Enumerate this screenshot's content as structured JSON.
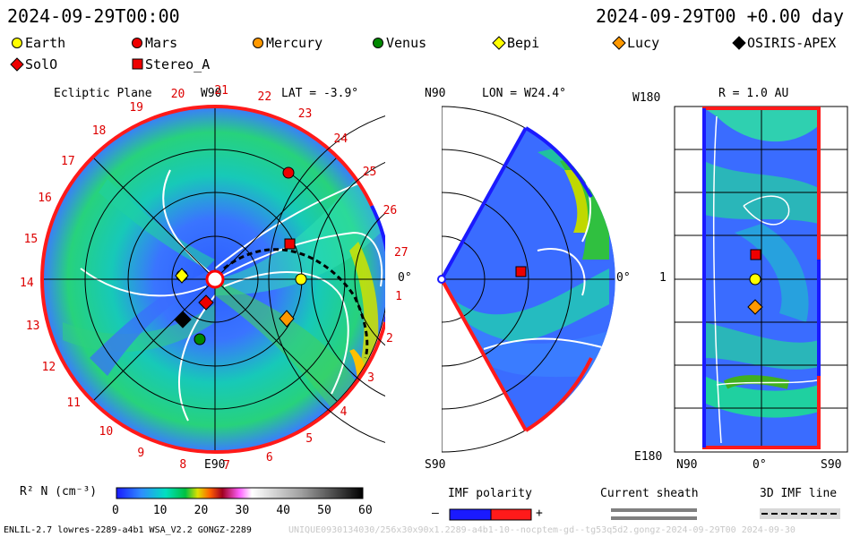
{
  "header": {
    "left_time": "2024-09-29T00:00",
    "right_time": "2024-09-29T00 +0.00 day"
  },
  "legend": [
    {
      "name": "Earth",
      "marker": "circle",
      "color": "#ffff00"
    },
    {
      "name": "Mars",
      "marker": "circle",
      "color": "#ee0000"
    },
    {
      "name": "Mercury",
      "marker": "circle",
      "color": "#ff9900"
    },
    {
      "name": "Venus",
      "marker": "circle",
      "color": "#008800"
    },
    {
      "name": "Bepi",
      "marker": "diamond",
      "color": "#ffff00"
    },
    {
      "name": "Lucy",
      "marker": "diamond",
      "color": "#ff9900"
    },
    {
      "name": "OSIRIS-APEX",
      "marker": "diamond",
      "color": "#000000"
    },
    {
      "name": "SolO",
      "marker": "diamond",
      "color": "#ee0000"
    },
    {
      "name": "Stereo_A",
      "marker": "square",
      "color": "#ee0000"
    }
  ],
  "panels": {
    "ecliptic": {
      "title": "Ecliptic Plane",
      "top_label": "W90",
      "lat": "LAT = -3.9°",
      "bottom_label": "E90",
      "right_label": "0°",
      "carrington": [
        "19",
        "20",
        "21",
        "22",
        "23",
        "24",
        "25",
        "26",
        "27",
        "1",
        "2",
        "3",
        "4",
        "5",
        "6",
        "7",
        "8",
        "9",
        "10",
        "11",
        "12",
        "13",
        "14",
        "15",
        "16",
        "17",
        "18"
      ]
    },
    "meridional": {
      "top_left": "N90",
      "lon": "LON = W24.4°",
      "bottom_left": "S90",
      "right_label": "0°"
    },
    "radial": {
      "title": "R = 1.0 AU",
      "top_left": "W180",
      "mid_left": "1",
      "bottom_left": "E180",
      "bottom_labels": [
        "N90",
        "0°",
        "S90"
      ]
    }
  },
  "colorbar": {
    "label": "R² N (cm⁻³)",
    "ticks": [
      "0",
      "10",
      "20",
      "30",
      "40",
      "50",
      "60"
    ]
  },
  "imf_polarity": {
    "title": "IMF polarity",
    "minus": "–",
    "plus": "+",
    "neg_color": "#0000ff",
    "pos_color": "#ff0000"
  },
  "current_sheath": {
    "title": "Current sheath"
  },
  "imf_line": {
    "title": "3D IMF line"
  },
  "footer": {
    "left": "ENLIL-2.7 lowres-2289-a4b1 WSA_V2.2 GONGZ-2289",
    "right": "UNIQUE0930134030/256x30x90x1.2289-a4b1-10--nocptem-gd--tg53q5d2.gongz-2024-09-29T00     2024-09-30"
  },
  "chart_data": {
    "type": "heatmap",
    "variable": "R² N (cm⁻³)",
    "color_range": [
      0,
      60
    ],
    "color_ticks": [
      0,
      10,
      20,
      30,
      40,
      50,
      60
    ],
    "time": "2024-09-29T00:00",
    "offset_day": 0.0,
    "ecliptic_lat_deg": -3.9,
    "meridional_lon_deg": "W24.4",
    "radial_R_au": 1.0
  }
}
